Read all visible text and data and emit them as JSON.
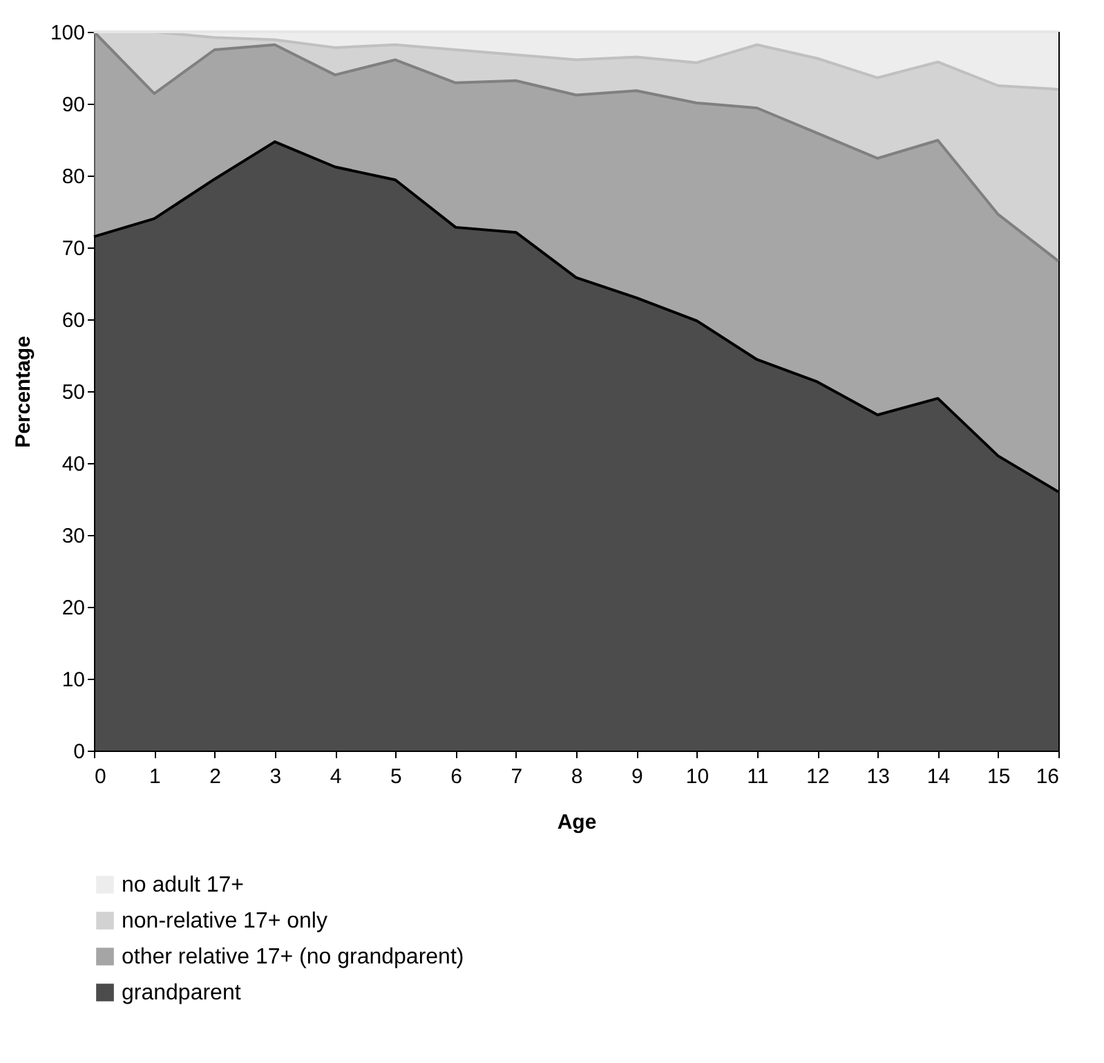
{
  "chart_data": {
    "type": "area",
    "stacked": true,
    "xlabel": "Age",
    "ylabel": "Percentage",
    "x": [
      0,
      1,
      2,
      3,
      4,
      5,
      6,
      7,
      8,
      9,
      10,
      11,
      12,
      13,
      14,
      15,
      16
    ],
    "xlim": [
      0,
      16
    ],
    "xticks": [
      0,
      1,
      2,
      3,
      4,
      5,
      6,
      7,
      8,
      9,
      10,
      11,
      12,
      13,
      14,
      15,
      16
    ],
    "ylim": [
      0,
      100
    ],
    "yticks": [
      0,
      10,
      20,
      30,
      40,
      50,
      60,
      70,
      80,
      90,
      100
    ],
    "legend": "bottom",
    "grid": false,
    "series": [
      {
        "name": "grandparent",
        "color": "#000000",
        "values": [
          71.5,
          74,
          79.5,
          84.7,
          81.2,
          79.4,
          72.8,
          72.1,
          65.8,
          63,
          59.8,
          54.4,
          51.3,
          46.7,
          49,
          41,
          36
        ]
      },
      {
        "name": "other relative 17+ (no grandparent)",
        "color": "#808080",
        "values": [
          28.5,
          17.4,
          18,
          13.5,
          12.8,
          16.7,
          20.1,
          21.1,
          25.4,
          28.8,
          30.3,
          35,
          34.6,
          35.7,
          35.9,
          33.6,
          32.1
        ]
      },
      {
        "name": "non-relative 17+ only",
        "color": "#c0c0c0",
        "values": [
          0,
          8.6,
          1.7,
          0.7,
          3.8,
          2.1,
          4.6,
          3.6,
          4.9,
          4.7,
          5.6,
          8.8,
          10.4,
          11.2,
          10.9,
          17.9,
          23.9
        ]
      },
      {
        "name": "no adult 17+",
        "color": "#e6e6e6",
        "values": [
          0,
          0,
          0.8,
          1.1,
          2.2,
          1.8,
          2.5,
          3.2,
          3.9,
          3.5,
          4.3,
          1.8,
          3.7,
          6.4,
          4.2,
          7.5,
          8
        ]
      }
    ]
  }
}
